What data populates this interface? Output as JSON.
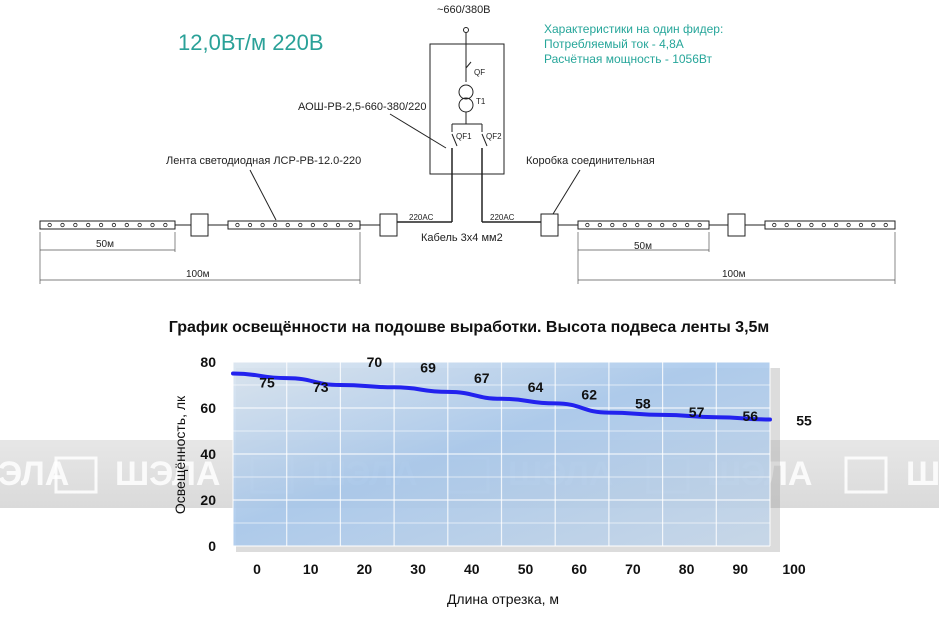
{
  "scheme": {
    "power_rating": "12,0Вт/м 220В",
    "supply": "~660/380В",
    "specs": [
      "Характеристики на один фидер:",
      "Потребляемый ток - 4,8А",
      "Расчётная мощность - 1056Вт"
    ],
    "device_label": "АОШ-РВ-2,5-660-380/220",
    "qf": "QF",
    "t1": "T1",
    "qf1": "QF1",
    "qf2": "QF2",
    "strip_label": "Лента светодиодная ЛСР-РВ-12.0-220",
    "box_label": "Коробка соединительная",
    "ac_left": "220AC",
    "ac_right": "220AC",
    "cable": "Кабель 3х4 мм2",
    "dim_50_left": "50м",
    "dim_100_left": "100м",
    "dim_50_right": "50м",
    "dim_100_right": "100м"
  },
  "watermark": {
    "text": "ШЭЛА",
    "fragments": [
      "ЭЛА",
      "ШЭЛА",
      "ШЭЛА",
      "ШЭЛА",
      "ШЭЛА",
      "Ш"
    ]
  },
  "chart_data": {
    "type": "line",
    "title": "График освещённости на подошве выработки. Высота подвеса ленты 3,5м",
    "xlabel": "Длина отрезка, м",
    "ylabel": "Освещённость, лк",
    "x": [
      0,
      10,
      20,
      30,
      40,
      50,
      60,
      70,
      80,
      90,
      100
    ],
    "values": [
      75,
      73,
      70,
      69,
      67,
      64,
      62,
      58,
      57,
      56,
      55
    ],
    "data_labels": [
      "75",
      "73",
      "70",
      "69",
      "67",
      "64",
      "62",
      "58",
      "57",
      "56",
      "55"
    ],
    "x_ticks": [
      "0",
      "10",
      "20",
      "30",
      "40",
      "50",
      "60",
      "70",
      "80",
      "90",
      "100"
    ],
    "y_ticks": [
      "0",
      "20",
      "40",
      "60",
      "80"
    ],
    "xlim": [
      0,
      100
    ],
    "ylim": [
      0,
      80
    ],
    "grid": true,
    "line_color": "#2222ee"
  }
}
